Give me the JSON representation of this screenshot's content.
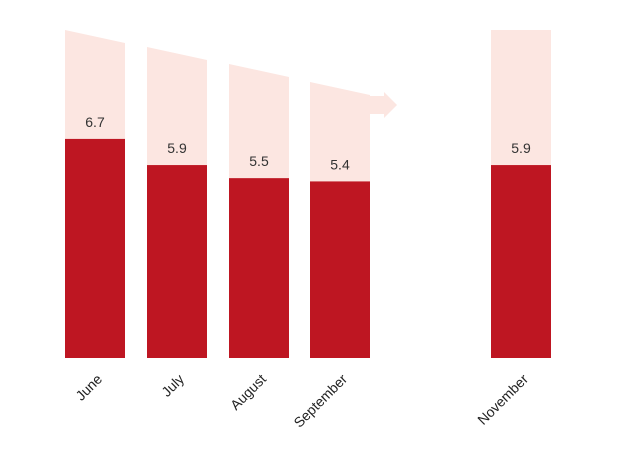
{
  "chart_data": {
    "type": "bar",
    "categories": [
      "June",
      "July",
      "August",
      "September",
      "November"
    ],
    "values": [
      6.7,
      5.9,
      5.5,
      5.4,
      5.9
    ],
    "value_labels": [
      "6.7",
      "5.9",
      "5.5",
      "5.4",
      "5.9"
    ],
    "ylim": [
      0,
      10
    ],
    "grid": false,
    "legend": "none",
    "annotation": "decreasing trend arrow from June to September",
    "colors": {
      "bar": "#be1622",
      "background_band": "#fce6e1",
      "arrow": "#fce6e1"
    }
  }
}
